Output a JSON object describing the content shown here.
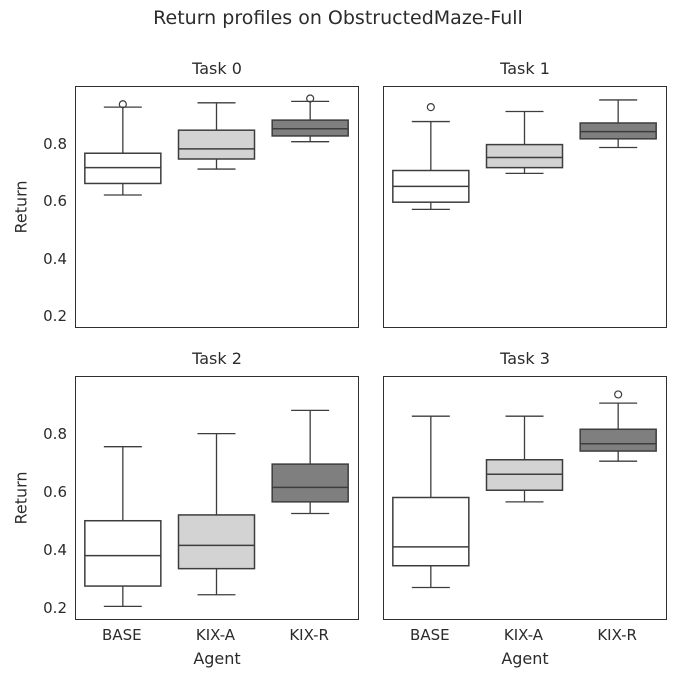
{
  "figure": {
    "title": "Return profiles on ObstructedMaze-Full",
    "background_color": "#ffffff",
    "text_color": "#2b2b2b",
    "line_color": "#3d3d3d"
  },
  "axes": {
    "xlabel": "Agent",
    "ylabel": "Return",
    "categories": [
      "BASE",
      "KIX-A",
      "KIX-R"
    ],
    "ytick_labels": [
      "0.8",
      "0.6",
      "0.4",
      "0.2"
    ],
    "ytick_values": [
      0.8,
      0.6,
      0.4,
      0.2
    ],
    "ylim": [
      0.17,
      1.0
    ],
    "grid": false,
    "legend": "none"
  },
  "box_colors": {
    "BASE": "#ffffff",
    "KIX-A": "#d3d3d3",
    "KIX-R": "#7f7f7f"
  },
  "chart_data": [
    {
      "type": "box",
      "title": "Task 0",
      "categories": [
        "BASE",
        "KIX-A",
        "KIX-R"
      ],
      "series": [
        {
          "name": "BASE",
          "whislo": 0.625,
          "q1": 0.665,
          "med": 0.72,
          "q3": 0.77,
          "whishi": 0.93,
          "fliers": [
            0.94
          ]
        },
        {
          "name": "KIX-A",
          "whislo": 0.715,
          "q1": 0.75,
          "med": 0.785,
          "q3": 0.85,
          "whishi": 0.945,
          "fliers": []
        },
        {
          "name": "KIX-R",
          "whislo": 0.81,
          "q1": 0.83,
          "med": 0.855,
          "q3": 0.885,
          "whishi": 0.95,
          "fliers": [
            0.96
          ]
        }
      ]
    },
    {
      "type": "box",
      "title": "Task 1",
      "categories": [
        "BASE",
        "KIX-A",
        "KIX-R"
      ],
      "series": [
        {
          "name": "BASE",
          "whislo": 0.575,
          "q1": 0.6,
          "med": 0.655,
          "q3": 0.71,
          "whishi": 0.88,
          "fliers": [
            0.93
          ]
        },
        {
          "name": "KIX-A",
          "whislo": 0.7,
          "q1": 0.72,
          "med": 0.755,
          "q3": 0.8,
          "whishi": 0.915,
          "fliers": []
        },
        {
          "name": "KIX-R",
          "whislo": 0.79,
          "q1": 0.82,
          "med": 0.845,
          "q3": 0.875,
          "whishi": 0.955,
          "fliers": []
        }
      ]
    },
    {
      "type": "box",
      "title": "Task 2",
      "categories": [
        "BASE",
        "KIX-A",
        "KIX-R"
      ],
      "series": [
        {
          "name": "BASE",
          "whislo": 0.21,
          "q1": 0.28,
          "med": 0.385,
          "q3": 0.505,
          "whishi": 0.76,
          "fliers": []
        },
        {
          "name": "KIX-A",
          "whislo": 0.25,
          "q1": 0.34,
          "med": 0.42,
          "q3": 0.525,
          "whishi": 0.805,
          "fliers": []
        },
        {
          "name": "KIX-R",
          "whislo": 0.53,
          "q1": 0.57,
          "med": 0.62,
          "q3": 0.7,
          "whishi": 0.885,
          "fliers": []
        }
      ]
    },
    {
      "type": "box",
      "title": "Task 3",
      "categories": [
        "BASE",
        "KIX-A",
        "KIX-R"
      ],
      "series": [
        {
          "name": "BASE",
          "whislo": 0.275,
          "q1": 0.35,
          "med": 0.415,
          "q3": 0.585,
          "whishi": 0.865,
          "fliers": []
        },
        {
          "name": "KIX-A",
          "whislo": 0.57,
          "q1": 0.61,
          "med": 0.665,
          "q3": 0.715,
          "whishi": 0.865,
          "fliers": []
        },
        {
          "name": "KIX-R",
          "whislo": 0.71,
          "q1": 0.745,
          "med": 0.77,
          "q3": 0.82,
          "whishi": 0.91,
          "fliers": [
            0.94
          ]
        }
      ]
    }
  ]
}
